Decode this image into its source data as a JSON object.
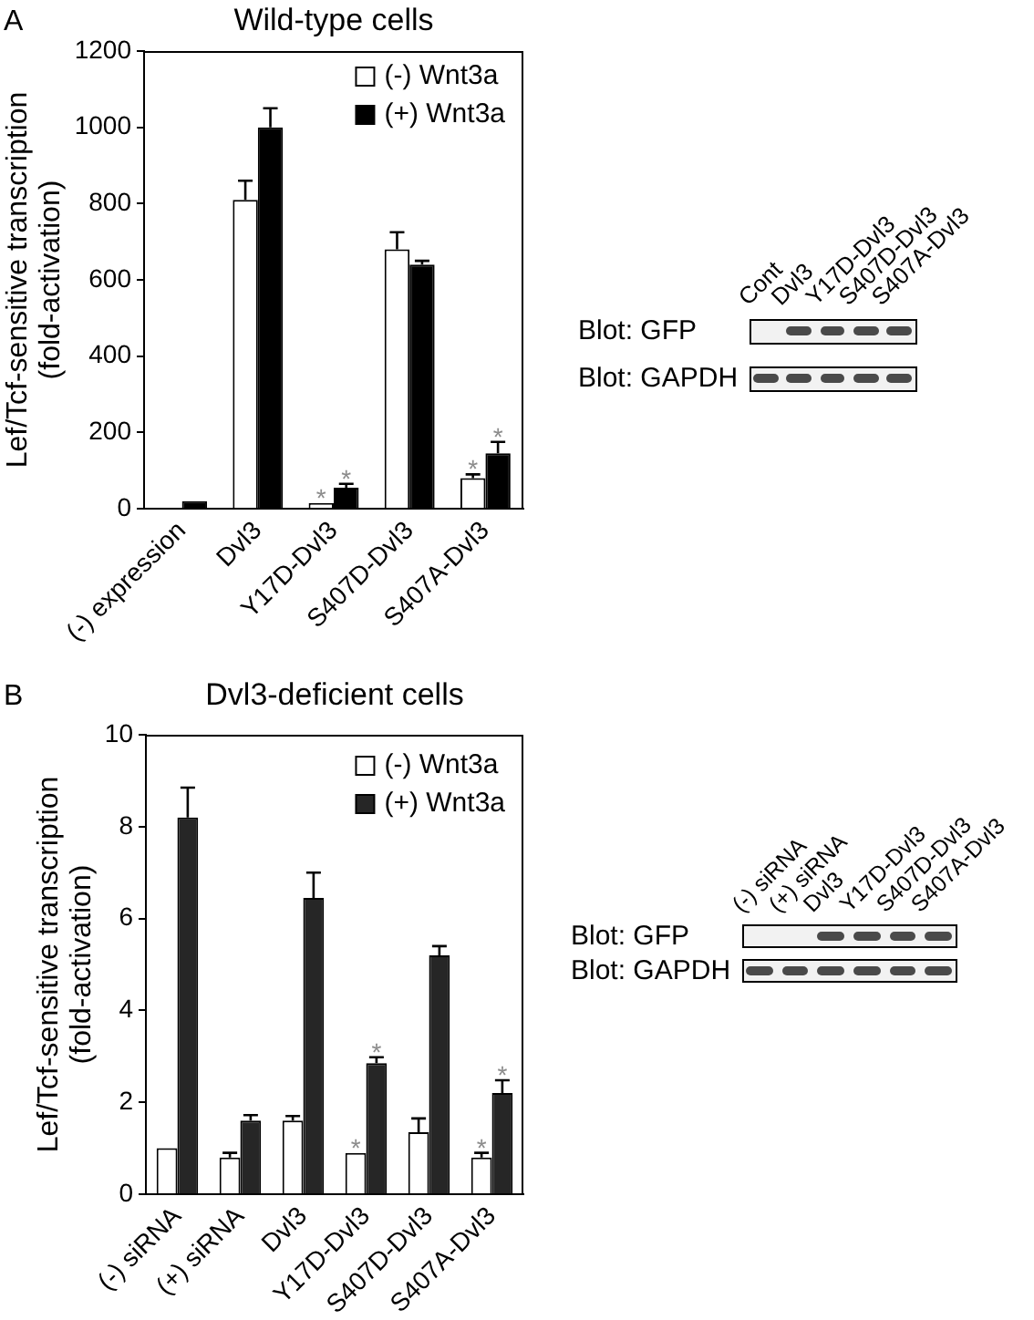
{
  "chart_data": [
    {
      "type": "bar",
      "title": "Wild-type cells",
      "ylabel": "Lef/Tcf-sensitive transcription (fold-activation)",
      "annotations": [
        "A"
      ],
      "categories": [
        "(-) expression",
        "Dvl3",
        "Y17D-Dvl3",
        "S407D-Dvl3",
        "S407A-Dvl3"
      ],
      "series": [
        {
          "name": "(-) Wnt3a",
          "color": "#ffffff",
          "values": [
            null,
            810,
            15,
            680,
            80
          ],
          "errors": [
            null,
            [
              810,
              860
            ],
            null,
            [
              680,
              725
            ],
            [
              80,
              90
            ]
          ],
          "value_labels": [
            null,
            null,
            "*",
            null,
            "*"
          ]
        },
        {
          "name": "(+) Wnt3a",
          "color": "#000000",
          "values": [
            20,
            1000,
            55,
            640,
            145
          ],
          "errors": [
            null,
            [
              1000,
              1050
            ],
            [
              55,
              65
            ],
            [
              640,
              650
            ],
            [
              145,
              175
            ]
          ],
          "value_labels": [
            null,
            null,
            "*",
            null,
            "*"
          ]
        }
      ],
      "ylim": [
        0,
        1200
      ],
      "yticks": [
        0,
        200,
        400,
        600,
        800,
        1000,
        1200
      ],
      "legend": "top right"
    },
    {
      "type": "other",
      "categories": [
        "Cont",
        "Dvl3",
        "Y17D-Dvl3",
        "S407D-Dvl3",
        "S407A-Dvl3"
      ],
      "y_categories": [
        "Blot: GFP",
        "Blot: GAPDH"
      ]
    },
    {
      "type": "bar",
      "title": "Dvl3-deficient cells",
      "ylabel": "Lef/Tcf-sensitive transcription (fold-activation)",
      "annotations": [
        "B"
      ],
      "categories": [
        "(-) siRNA",
        "(+) siRNA",
        "Dvl3",
        "Y17D-Dvl3",
        "S407D-Dvl3",
        "S407A-Dvl3"
      ],
      "series": [
        {
          "name": "(-) Wnt3a",
          "color": "#ffffff",
          "values": [
            1.0,
            0.8,
            1.6,
            0.9,
            1.35,
            0.8
          ],
          "errors": [
            null,
            [
              0.8,
              0.9
            ],
            [
              1.6,
              1.7
            ],
            null,
            [
              1.35,
              1.65
            ],
            [
              0.8,
              0.9
            ]
          ],
          "value_labels": [
            null,
            null,
            null,
            "*",
            null,
            "*"
          ]
        },
        {
          "name": "(+) Wnt3a",
          "color": "#262626",
          "values": [
            8.2,
            1.6,
            6.45,
            2.85,
            5.2,
            2.2
          ],
          "errors": [
            [
              8.2,
              8.85
            ],
            [
              1.6,
              1.72
            ],
            [
              6.45,
              7.0
            ],
            [
              2.85,
              2.98
            ],
            [
              5.2,
              5.4
            ],
            [
              2.2,
              2.48
            ]
          ],
          "value_labels": [
            null,
            null,
            null,
            "*",
            null,
            "*"
          ]
        }
      ],
      "ylim": [
        0,
        10
      ],
      "yticks": [
        0,
        2,
        4,
        6,
        8,
        10
      ],
      "legend": "top right"
    },
    {
      "type": "other",
      "categories": [
        "(-) siRNA",
        "(+) siRNA",
        "Dvl3",
        "Y17D-Dvl3",
        "S407D-Dvl3",
        "S407A-Dvl3"
      ],
      "y_categories": [
        "Blot: GFP",
        "Blot: GAPDH"
      ]
    }
  ]
}
